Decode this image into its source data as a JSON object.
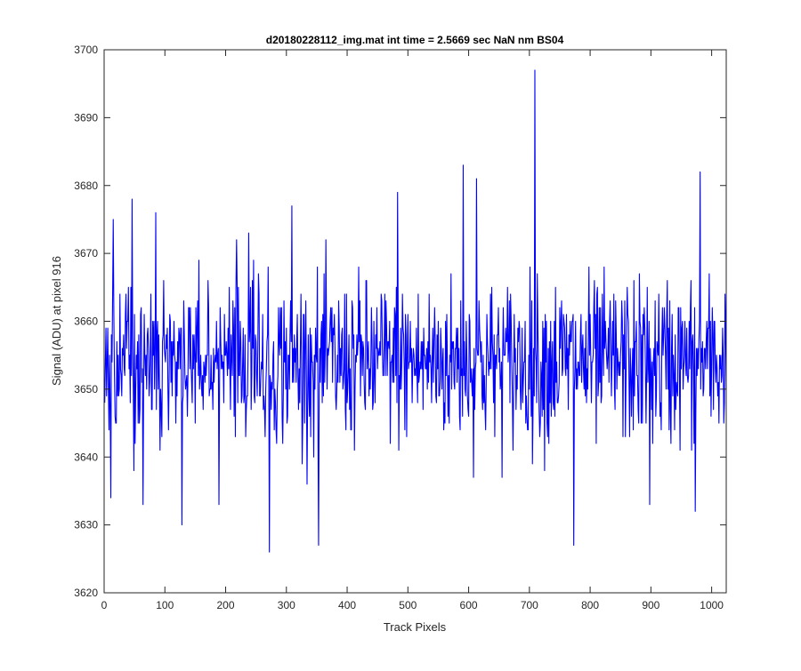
{
  "chart_data": {
    "type": "line",
    "title": "d20180228112_img.mat int time = 2.5669 sec  NaN nm BS04",
    "xlabel": "Track Pixels",
    "ylabel": "Signal (ADU) at pixel 916",
    "xlim": [
      0,
      1024
    ],
    "ylim": [
      3620,
      3700
    ],
    "xticks": [
      0,
      100,
      200,
      300,
      400,
      500,
      600,
      700,
      800,
      900,
      1000
    ],
    "yticks": [
      3620,
      3630,
      3640,
      3650,
      3660,
      3670,
      3680,
      3690,
      3700
    ],
    "grid": false,
    "series": [
      {
        "color": "#0000ff",
        "n_points": 1024,
        "mean": 3654,
        "std": 6,
        "peaks": [
          {
            "x": 10,
            "y": 3634
          },
          {
            "x": 14,
            "y": 3675
          },
          {
            "x": 45,
            "y": 3678
          },
          {
            "x": 63,
            "y": 3633
          },
          {
            "x": 84,
            "y": 3676
          },
          {
            "x": 127,
            "y": 3630
          },
          {
            "x": 188,
            "y": 3633
          },
          {
            "x": 237,
            "y": 3673
          },
          {
            "x": 271,
            "y": 3626
          },
          {
            "x": 308,
            "y": 3677
          },
          {
            "x": 352,
            "y": 3627
          },
          {
            "x": 482,
            "y": 3679
          },
          {
            "x": 590,
            "y": 3683
          },
          {
            "x": 612,
            "y": 3681
          },
          {
            "x": 708,
            "y": 3697
          },
          {
            "x": 772,
            "y": 3627
          },
          {
            "x": 897,
            "y": 3633
          },
          {
            "x": 972,
            "y": 3632
          },
          {
            "x": 980,
            "y": 3682
          }
        ]
      }
    ]
  }
}
